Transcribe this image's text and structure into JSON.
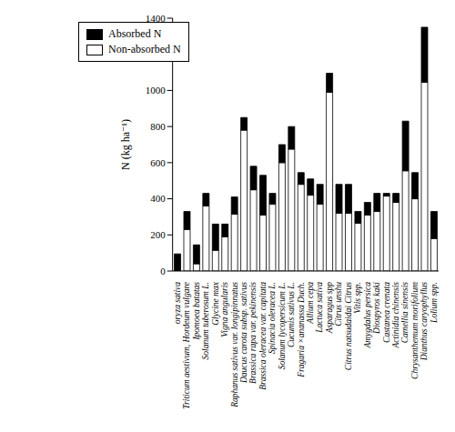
{
  "chart_data": {
    "type": "bar",
    "stacked": true,
    "y_label": "N (kg ha⁻¹)",
    "categories": [
      "oryza sativa",
      "Triticum aestivum, Hordeum vulgare",
      "Ipomoea batatas",
      "Solanum tuberosum L.",
      "Glycine max",
      "Vigna angularis",
      "Raphanus sativus var. longipinnatus",
      "Daucus carota subsp. sativus",
      "Brassica rapa var. pekinensis",
      "Brassica oleracea var. capitata",
      "Spinacia oleracea L.",
      "Solanum lycopersicum L.",
      "Cucumis sativus L.",
      "Fragaria ×ananassa Duch.",
      "Allium cepa",
      "Lactuca sativa",
      "Asparagus spp",
      "Citrus unshu",
      "Citrus natsudaidai Citrus",
      "Vitis spp.",
      "Amygdalus persica",
      "Diospyros kaki",
      "Castanea crenata",
      "Actinidia chinensis",
      "Camellia sinensis",
      "Chrysanthemum morifolium",
      "Dianthus caryophyllus",
      "Lolium spp."
    ],
    "series": [
      {
        "name": "Non-absorbed N",
        "color": "#ffffff",
        "values": [
          0,
          230,
          40,
          360,
          115,
          190,
          315,
          780,
          450,
          310,
          370,
          600,
          675,
          480,
          420,
          370,
          990,
          320,
          320,
          265,
          310,
          330,
          415,
          380,
          555,
          400,
          1045,
          180
        ]
      },
      {
        "name": "Absorbed N",
        "color": "#000000",
        "values": [
          95,
          100,
          105,
          70,
          145,
          70,
          95,
          70,
          130,
          220,
          60,
          100,
          125,
          65,
          90,
          110,
          105,
          160,
          160,
          65,
          70,
          100,
          15,
          50,
          275,
          145,
          305,
          150
        ]
      }
    ],
    "ylim": [
      0,
      1400
    ],
    "yticks": [
      0,
      200,
      400,
      600,
      800,
      1000,
      1200,
      1400
    ],
    "grid": false,
    "legend": "upper left"
  }
}
